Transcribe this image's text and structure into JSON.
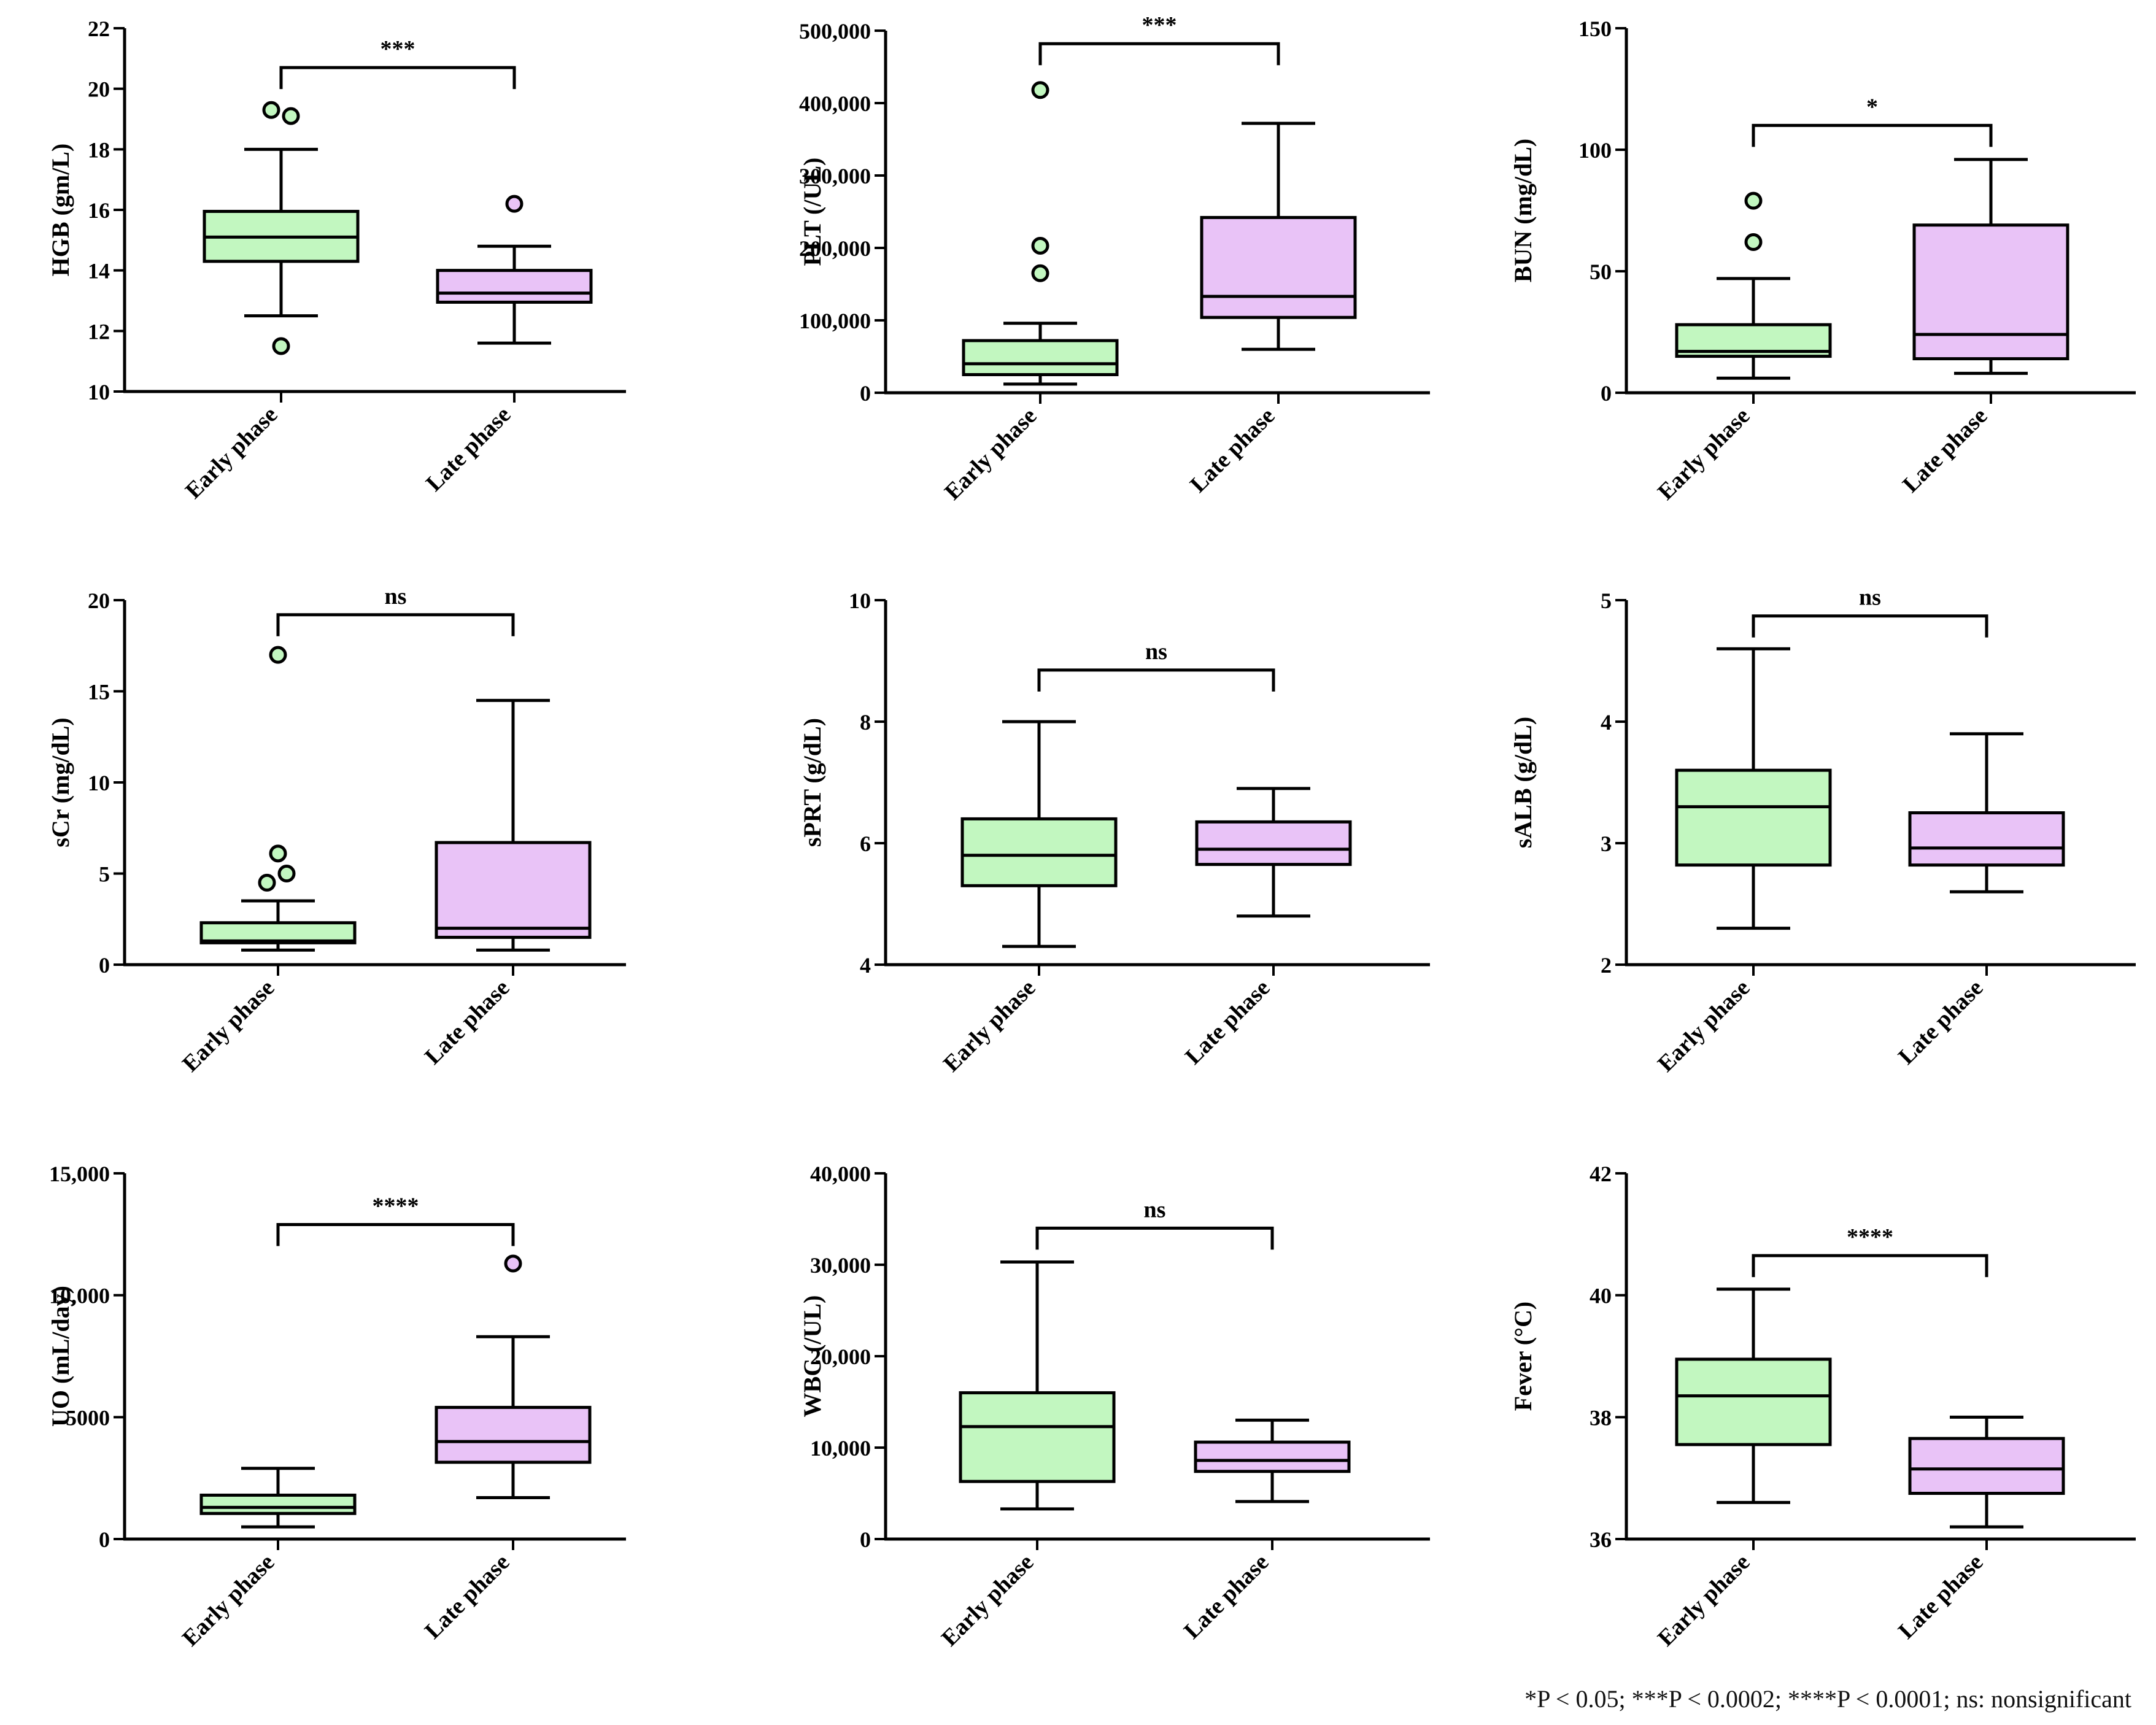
{
  "colors": {
    "early": "#c2f7c0",
    "late": "#e9c3f7",
    "stroke": "#000000"
  },
  "footnote": "*P < 0.05; ***P < 0.0002; ****P < 0.0001; ns: nonsignificant",
  "chart_data": [
    {
      "type": "box",
      "ylabel": "HGB (gm/L)",
      "ylim": [
        10,
        22
      ],
      "yticks": [
        10,
        12,
        14,
        16,
        18,
        20,
        22
      ],
      "yticklabels": [
        "10",
        "12",
        "14",
        "16",
        "18",
        "20",
        "22"
      ],
      "categories": [
        "Early phase",
        "Late phase"
      ],
      "boxes": [
        {
          "name": "Early phase",
          "min": 12.5,
          "q1": 14.3,
          "median": 15.1,
          "q3": 15.95,
          "max": 18.0,
          "outliers": [
            19.3,
            19.1,
            11.5
          ]
        },
        {
          "name": "Late phase",
          "min": 11.6,
          "q1": 12.95,
          "median": 13.25,
          "q3": 14.0,
          "max": 14.8,
          "outliers": [
            16.2
          ]
        }
      ],
      "significance": {
        "label": "***",
        "bar": 20.7,
        "from": [
          17.0,
          20.7
        ],
        "to": [
          0.0,
          0.0
        ]
      }
    },
    {
      "type": "box",
      "ylabel": "PLT (/UL)",
      "ylim": [
        0,
        500000
      ],
      "yticks": [
        0,
        100000,
        200000,
        300000,
        400000,
        500000
      ],
      "yticklabels": [
        "0",
        "100,000",
        "200,000",
        "300,000",
        "400,000",
        "500,000"
      ],
      "categories": [
        "Early phase",
        "Late phase"
      ],
      "boxes": [
        {
          "name": "Early phase",
          "min": 12000,
          "q1": 25000,
          "median": 40000,
          "q3": 72000,
          "max": 96000,
          "outliers": [
            418000,
            203000,
            165000
          ]
        },
        {
          "name": "Late phase",
          "min": 60000,
          "q1": 104000,
          "median": 133000,
          "q3": 242000,
          "max": 372000,
          "outliers": []
        }
      ],
      "significance": {
        "label": "***",
        "bar": 482000,
        "from": [
          450000,
          482000
        ],
        "to": [
          450000,
          482000
        ]
      }
    },
    {
      "type": "box",
      "ylabel": "BUN (mg/dL)",
      "ylim": [
        0,
        150
      ],
      "yticks": [
        0,
        50,
        100,
        150
      ],
      "yticklabels": [
        "0",
        "50",
        "100",
        "150"
      ],
      "categories": [
        "Early phase",
        "Late phase"
      ],
      "boxes": [
        {
          "name": "Early phase",
          "min": 6,
          "q1": 15,
          "median": 17,
          "q3": 28,
          "max": 47,
          "outliers": [
            79,
            62
          ]
        },
        {
          "name": "Late phase",
          "min": 8,
          "q1": 14,
          "median": 24,
          "q3": 69,
          "max": 96,
          "outliers": []
        }
      ],
      "significance": {
        "label": "*",
        "bar": 110,
        "from": [
          101,
          110
        ],
        "to": [
          101,
          110
        ]
      }
    },
    {
      "type": "box",
      "ylabel": "sCr (mg/dL)",
      "ylim": [
        0,
        20
      ],
      "yticks": [
        0,
        5,
        10,
        15,
        20
      ],
      "yticklabels": [
        "0",
        "5",
        "10",
        "15",
        "20"
      ],
      "categories": [
        "Early phase",
        "Late phase"
      ],
      "boxes": [
        {
          "name": "Early phase",
          "min": 0.8,
          "q1": 1.2,
          "median": 1.3,
          "q3": 2.3,
          "max": 3.5,
          "outliers": [
            17.0,
            6.1,
            5.0,
            4.5
          ]
        },
        {
          "name": "Late phase",
          "min": 0.8,
          "q1": 1.5,
          "median": 2.0,
          "q3": 6.7,
          "max": 14.5,
          "outliers": []
        }
      ],
      "significance": {
        "label": "ns",
        "bar": 19.2,
        "from": [
          18.0,
          19.2
        ],
        "to": [
          18.0,
          19.2
        ]
      }
    },
    {
      "type": "box",
      "ylabel": "sPRT (g/dL)",
      "ylim": [
        4,
        10
      ],
      "yticks": [
        4,
        6,
        8,
        10
      ],
      "yticklabels": [
        "4",
        "6",
        "8",
        "10"
      ],
      "categories": [
        "Early phase",
        "Late phase"
      ],
      "boxes": [
        {
          "name": "Early phase",
          "min": 4.3,
          "q1": 5.3,
          "median": 5.8,
          "q3": 6.4,
          "max": 8.0,
          "outliers": []
        },
        {
          "name": "Late phase",
          "min": 4.8,
          "q1": 5.65,
          "median": 5.9,
          "q3": 6.35,
          "max": 6.9,
          "outliers": []
        }
      ],
      "significance": {
        "label": "ns",
        "bar": 8.85,
        "from": [
          8.5,
          8.85
        ],
        "to": [
          8.5,
          8.85
        ]
      }
    },
    {
      "type": "box",
      "ylabel": "sALB (g/dL)",
      "ylim": [
        2,
        5
      ],
      "yticks": [
        2,
        3,
        4,
        5
      ],
      "yticklabels": [
        "2",
        "3",
        "4",
        "5"
      ],
      "categories": [
        "Early phase",
        "Late phase"
      ],
      "boxes": [
        {
          "name": "Early phase",
          "min": 2.3,
          "q1": 2.82,
          "median": 3.3,
          "q3": 3.6,
          "max": 4.6,
          "outliers": []
        },
        {
          "name": "Late phase",
          "min": 2.6,
          "q1": 2.82,
          "median": 2.96,
          "q3": 3.25,
          "max": 3.9,
          "outliers": []
        }
      ],
      "significance": {
        "label": "ns",
        "bar": 4.87,
        "from": [
          4.7,
          4.87
        ],
        "to": [
          4.7,
          4.87
        ]
      }
    },
    {
      "type": "box",
      "ylabel": "UO (mL/day)",
      "ylim": [
        0,
        15000
      ],
      "yticks": [
        0,
        5000,
        10000,
        15000
      ],
      "yticklabels": [
        "0",
        "5000",
        "10,000",
        "15,000"
      ],
      "categories": [
        "Early phase",
        "Late phase"
      ],
      "boxes": [
        {
          "name": "Early phase",
          "min": 500,
          "q1": 1050,
          "median": 1300,
          "q3": 1800,
          "max": 2900,
          "outliers": []
        },
        {
          "name": "Late phase",
          "min": 1700,
          "q1": 3150,
          "median": 4000,
          "q3": 5400,
          "max": 8300,
          "outliers": [
            11300
          ]
        }
      ],
      "significance": {
        "label": "****",
        "bar": 12900,
        "from": [
          12000,
          12900
        ],
        "to": [
          12000,
          12900
        ]
      }
    },
    {
      "type": "box",
      "ylabel": "WBC (/UL)",
      "ylim": [
        0,
        40000
      ],
      "yticks": [
        0,
        10000,
        20000,
        30000,
        40000
      ],
      "yticklabels": [
        "0",
        "10,000",
        "20,000",
        "30,000",
        "40,000"
      ],
      "categories": [
        "Early phase",
        "Late phase"
      ],
      "boxes": [
        {
          "name": "Early phase",
          "min": 3300,
          "q1": 6300,
          "median": 12300,
          "q3": 16000,
          "max": 30300,
          "outliers": []
        },
        {
          "name": "Late phase",
          "min": 4100,
          "q1": 7400,
          "median": 8600,
          "q3": 10600,
          "max": 13000,
          "outliers": []
        }
      ],
      "significance": {
        "label": "ns",
        "bar": 34000,
        "from": [
          31500,
          34000
        ],
        "to": [
          31500,
          34000
        ]
      }
    },
    {
      "type": "box",
      "ylabel": "Fever (°C)",
      "ylim": [
        36,
        42
      ],
      "yticks": [
        36,
        38,
        40,
        42
      ],
      "yticklabels": [
        "36",
        "38",
        "40",
        "42"
      ],
      "categories": [
        "Early phase",
        "Late phase"
      ],
      "boxes": [
        {
          "name": "Early phase",
          "min": 36.6,
          "q1": 37.55,
          "median": 38.35,
          "q3": 38.95,
          "max": 40.1,
          "outliers": []
        },
        {
          "name": "Late phase",
          "min": 36.2,
          "q1": 36.75,
          "median": 37.15,
          "q3": 37.65,
          "max": 38.0,
          "outliers": []
        }
      ],
      "significance": {
        "label": "****",
        "bar": 40.65,
        "from": [
          40.3,
          40.65
        ],
        "to": [
          40.3,
          40.65
        ]
      }
    }
  ]
}
